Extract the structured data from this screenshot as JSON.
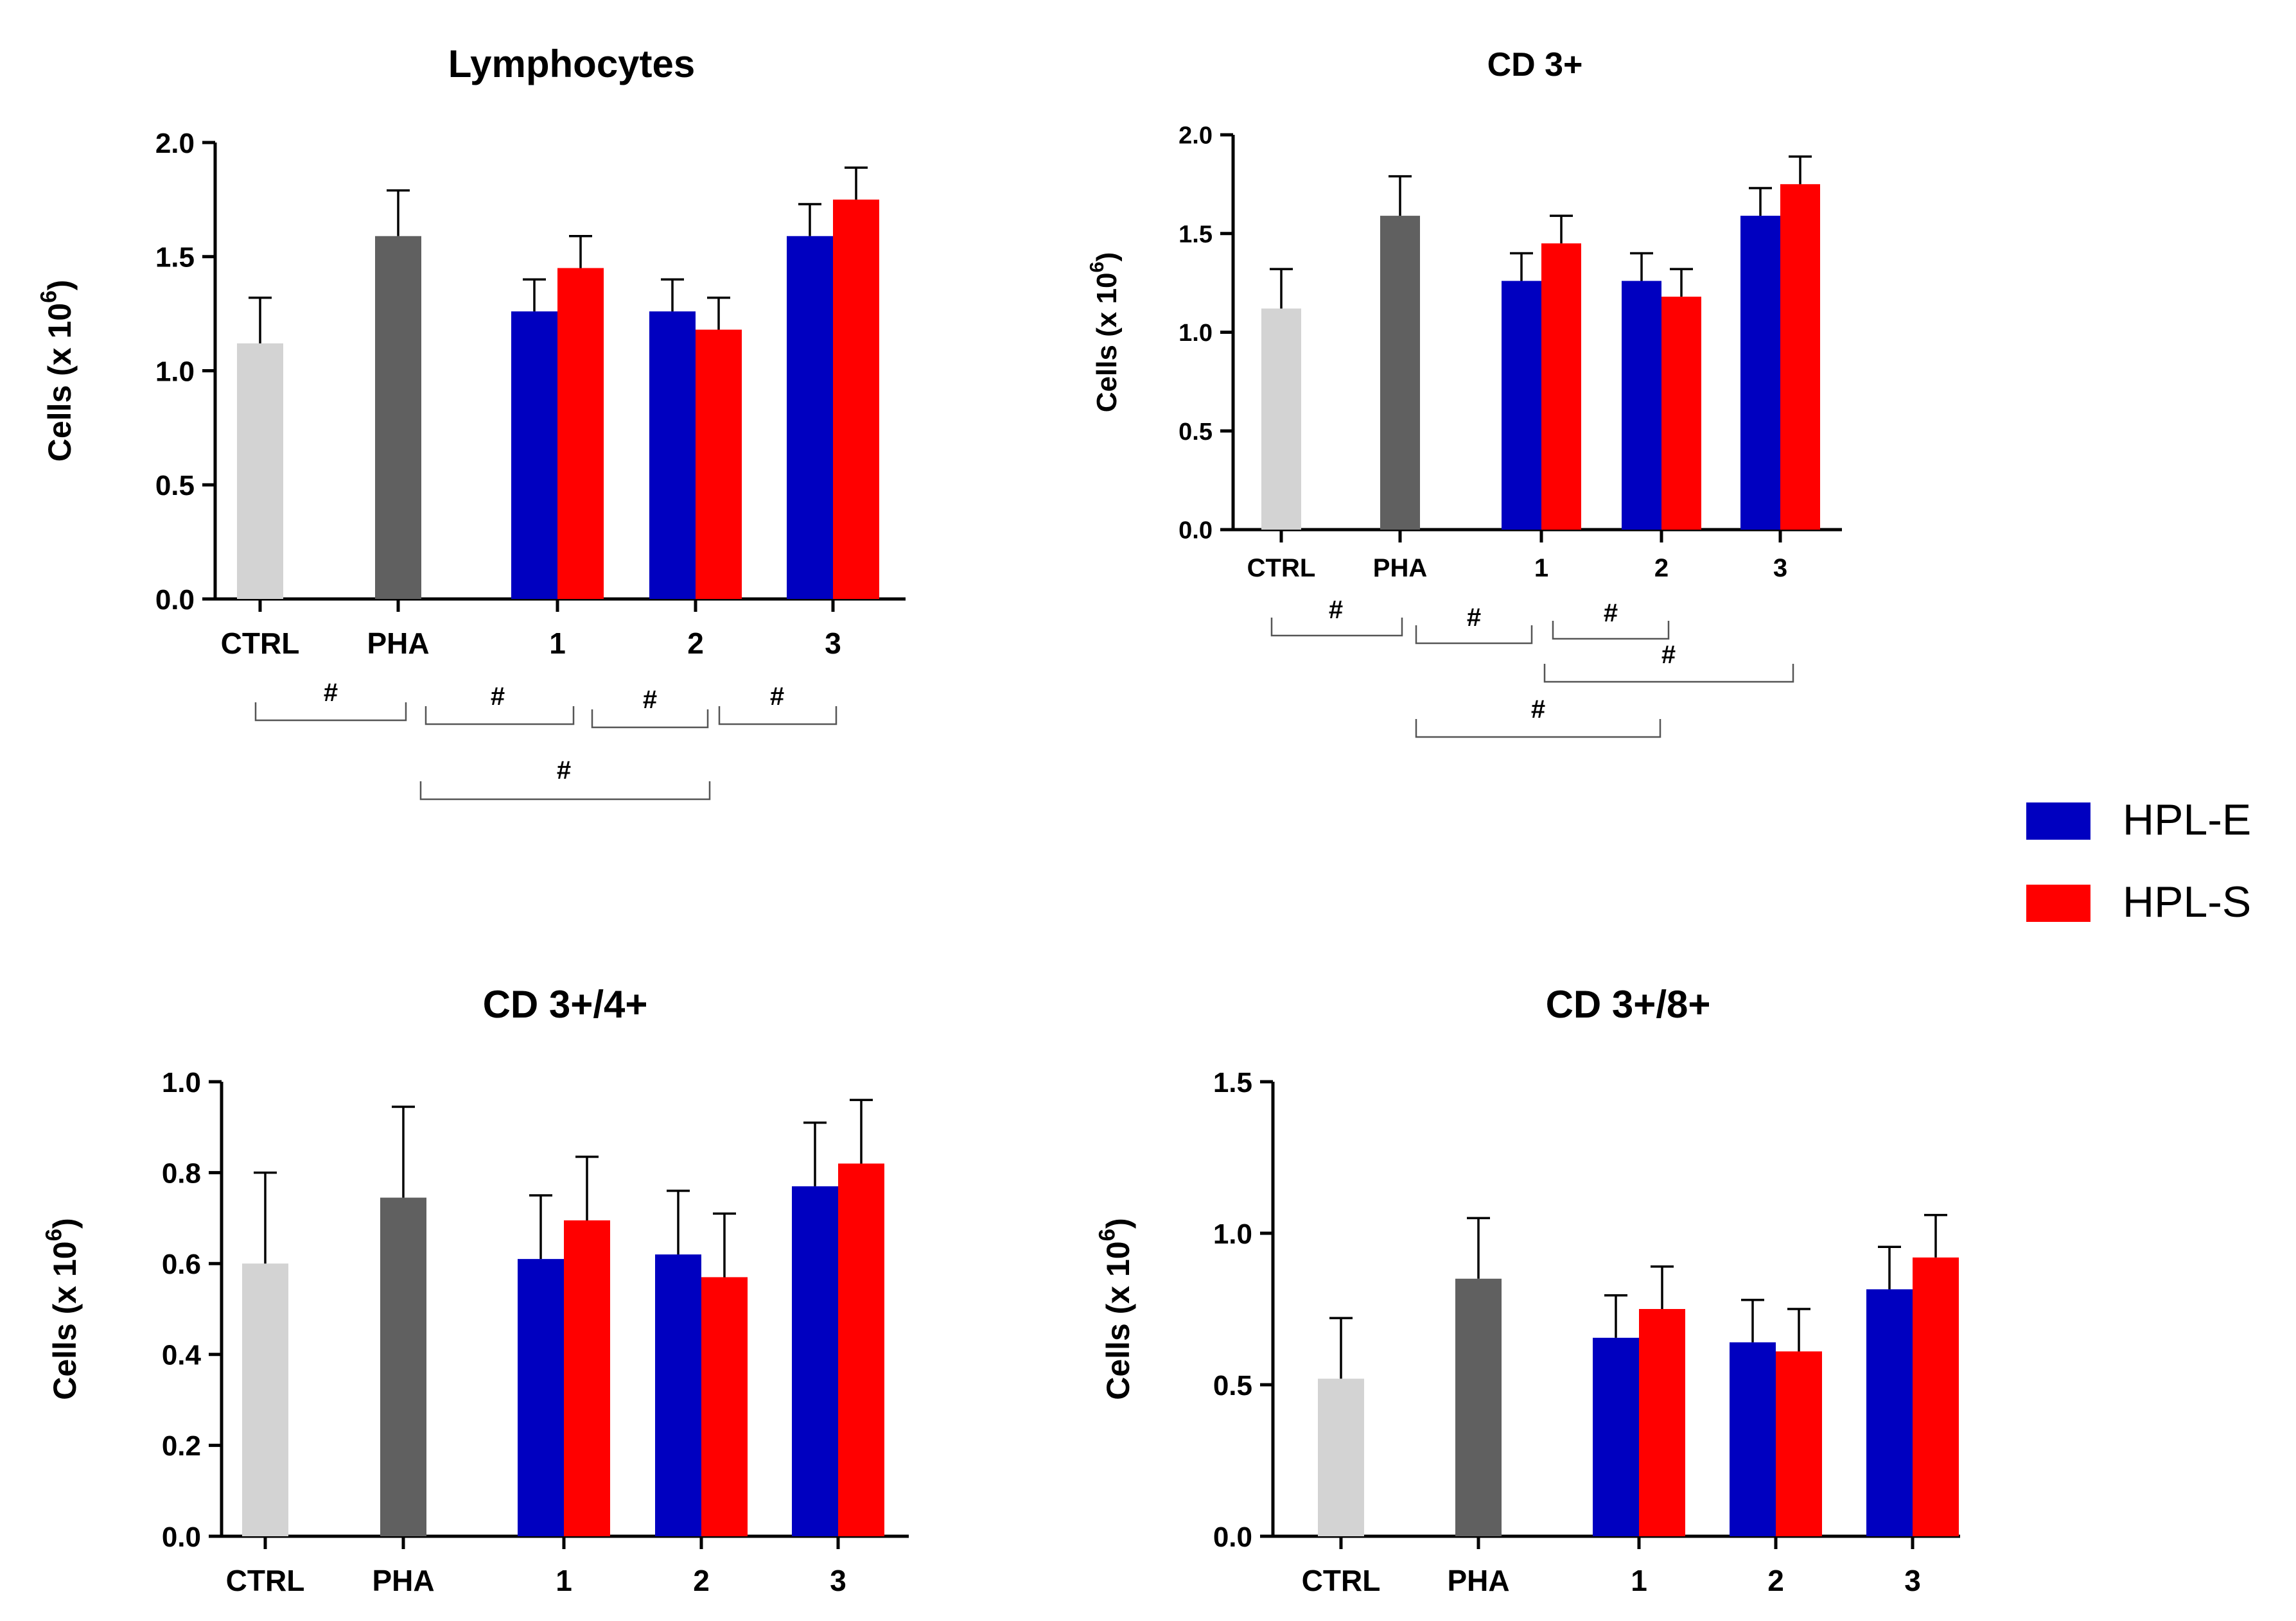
{
  "chart_data": [
    {
      "type": "bar",
      "title": "Lymphocytes",
      "ylabel_main": "Cells (x 10",
      "ylabel_sup": "6",
      "ylabel_end": ")",
      "ylim": [
        0,
        2.0
      ],
      "yticks": [
        "0.0",
        "0.5",
        "1.0",
        "1.5",
        "2.0"
      ],
      "categories": [
        "CTRL",
        "PHA",
        "1",
        "2",
        "3"
      ],
      "bars": [
        {
          "category": "CTRL",
          "series": "CTRL",
          "color": "#d3d3d3",
          "value": 1.12,
          "error": 0.2
        },
        {
          "category": "PHA",
          "series": "PHA",
          "color": "#606060",
          "value": 1.59,
          "error": 0.2
        },
        {
          "category": "1",
          "series": "HPL-E",
          "color": "#0000c0",
          "value": 1.26,
          "error": 0.14
        },
        {
          "category": "1",
          "series": "HPL-S",
          "color": "#ff0000",
          "value": 1.45,
          "error": 0.14
        },
        {
          "category": "2",
          "series": "HPL-E",
          "color": "#0000c0",
          "value": 1.26,
          "error": 0.14
        },
        {
          "category": "2",
          "series": "HPL-S",
          "color": "#ff0000",
          "value": 1.18,
          "error": 0.14
        },
        {
          "category": "3",
          "series": "HPL-E",
          "color": "#0000c0",
          "value": 1.59,
          "error": 0.14
        },
        {
          "category": "3",
          "series": "HPL-S",
          "color": "#ff0000",
          "value": 1.75,
          "error": 0.14
        }
      ],
      "significance": [
        {
          "from": "CTRL",
          "to": "PHA",
          "label": "#"
        },
        {
          "from": "PHA",
          "to": "1",
          "label": "#"
        },
        {
          "from": "1",
          "to": "2",
          "label": "#"
        },
        {
          "from": "2",
          "to": "3",
          "label": "#"
        },
        {
          "from": "PHA",
          "to": "2",
          "label": "#"
        }
      ]
    },
    {
      "type": "bar",
      "title": "CD 3+",
      "ylabel_main": "Cells (x 10",
      "ylabel_sup": "6",
      "ylabel_end": ")",
      "ylim": [
        0,
        2.0
      ],
      "yticks": [
        "0.0",
        "0.5",
        "1.0",
        "1.5",
        "2.0"
      ],
      "categories": [
        "CTRL",
        "PHA",
        "1",
        "2",
        "3"
      ],
      "bars": [
        {
          "category": "CTRL",
          "series": "CTRL",
          "color": "#d3d3d3",
          "value": 1.12,
          "error": 0.2
        },
        {
          "category": "PHA",
          "series": "PHA",
          "color": "#606060",
          "value": 1.59,
          "error": 0.2
        },
        {
          "category": "1",
          "series": "HPL-E",
          "color": "#0000c0",
          "value": 1.26,
          "error": 0.14
        },
        {
          "category": "1",
          "series": "HPL-S",
          "color": "#ff0000",
          "value": 1.45,
          "error": 0.14
        },
        {
          "category": "2",
          "series": "HPL-E",
          "color": "#0000c0",
          "value": 1.26,
          "error": 0.14
        },
        {
          "category": "2",
          "series": "HPL-S",
          "color": "#ff0000",
          "value": 1.18,
          "error": 0.14
        },
        {
          "category": "3",
          "series": "HPL-E",
          "color": "#0000c0",
          "value": 1.59,
          "error": 0.14
        },
        {
          "category": "3",
          "series": "HPL-S",
          "color": "#ff0000",
          "value": 1.75,
          "error": 0.14
        }
      ],
      "significance": [
        {
          "from": "CTRL",
          "to": "PHA",
          "label": "#"
        },
        {
          "from": "PHA",
          "to": "1",
          "label": "#"
        },
        {
          "from": "1",
          "to": "2",
          "label": "#"
        },
        {
          "from": "1",
          "to": "3",
          "label": "#"
        },
        {
          "from": "PHA",
          "to": "2",
          "label": "#"
        }
      ]
    },
    {
      "type": "bar",
      "title": "CD 3+/4+",
      "ylabel_main": "Cells (x 10",
      "ylabel_sup": "6",
      "ylabel_end": ")",
      "ylim": [
        0,
        1.0
      ],
      "yticks": [
        "0.0",
        "0.2",
        "0.4",
        "0.6",
        "0.8",
        "1.0"
      ],
      "categories": [
        "CTRL",
        "PHA",
        "1",
        "2",
        "3"
      ],
      "bars": [
        {
          "category": "CTRL",
          "series": "CTRL",
          "color": "#d3d3d3",
          "value": 0.6,
          "error": 0.2
        },
        {
          "category": "PHA",
          "series": "PHA",
          "color": "#606060",
          "value": 0.745,
          "error": 0.2
        },
        {
          "category": "1",
          "series": "HPL-E",
          "color": "#0000c0",
          "value": 0.61,
          "error": 0.14
        },
        {
          "category": "1",
          "series": "HPL-S",
          "color": "#ff0000",
          "value": 0.695,
          "error": 0.14
        },
        {
          "category": "2",
          "series": "HPL-E",
          "color": "#0000c0",
          "value": 0.62,
          "error": 0.14
        },
        {
          "category": "2",
          "series": "HPL-S",
          "color": "#ff0000",
          "value": 0.57,
          "error": 0.14
        },
        {
          "category": "3",
          "series": "HPL-E",
          "color": "#0000c0",
          "value": 0.77,
          "error": 0.14
        },
        {
          "category": "3",
          "series": "HPL-S",
          "color": "#ff0000",
          "value": 0.82,
          "error": 0.14
        }
      ],
      "significance": []
    },
    {
      "type": "bar",
      "title": "CD 3+/8+",
      "ylabel_main": "Cells (x 10",
      "ylabel_sup": "6",
      "ylabel_end": ")",
      "ylim": [
        0,
        1.5
      ],
      "yticks": [
        "0.0",
        "0.5",
        "1.0",
        "1.5"
      ],
      "categories": [
        "CTRL",
        "PHA",
        "1",
        "2",
        "3"
      ],
      "bars": [
        {
          "category": "CTRL",
          "series": "CTRL",
          "color": "#d3d3d3",
          "value": 0.52,
          "error": 0.2
        },
        {
          "category": "PHA",
          "series": "PHA",
          "color": "#606060",
          "value": 0.85,
          "error": 0.2
        },
        {
          "category": "1",
          "series": "HPL-E",
          "color": "#0000c0",
          "value": 0.655,
          "error": 0.14
        },
        {
          "category": "1",
          "series": "HPL-S",
          "color": "#ff0000",
          "value": 0.75,
          "error": 0.14
        },
        {
          "category": "2",
          "series": "HPL-E",
          "color": "#0000c0",
          "value": 0.64,
          "error": 0.14
        },
        {
          "category": "2",
          "series": "HPL-S",
          "color": "#ff0000",
          "value": 0.61,
          "error": 0.14
        },
        {
          "category": "3",
          "series": "HPL-E",
          "color": "#0000c0",
          "value": 0.815,
          "error": 0.14
        },
        {
          "category": "3",
          "series": "HPL-S",
          "color": "#ff0000",
          "value": 0.92,
          "error": 0.14
        }
      ],
      "significance": []
    }
  ],
  "legend": {
    "items": [
      {
        "label": "HPL-E",
        "color": "#0000c0"
      },
      {
        "label": "HPL-S",
        "color": "#ff0000"
      }
    ]
  }
}
